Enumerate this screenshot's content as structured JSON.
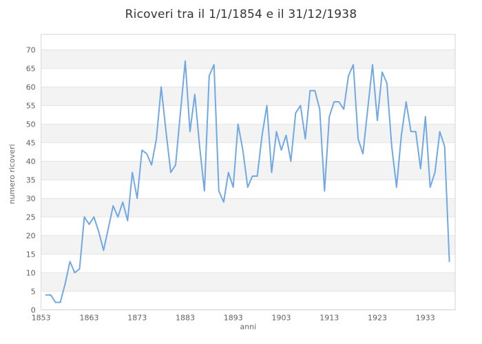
{
  "title": "Ricoveri tra il 1/1/1854 e il 31/12/1938",
  "chart_data": {
    "type": "line",
    "title": "Ricoveri tra il 1/1/1854 e il 31/12/1938",
    "xlabel": "anni",
    "ylabel": "numero ricoveri",
    "legend": "none",
    "grid": "horizontal gridlines every 5 units with alternating shaded bands",
    "start_year": 1854,
    "end_year": 1938,
    "x_ticks": [
      1853,
      1863,
      1873,
      1883,
      1893,
      1903,
      1913,
      1923,
      1933
    ],
    "y_ticks": [
      0,
      5,
      10,
      15,
      20,
      25,
      30,
      35,
      40,
      45,
      50,
      55,
      60,
      65,
      70
    ],
    "xlim": [
      1853,
      1939.2
    ],
    "ylim": [
      0,
      74.15
    ],
    "bands": [
      [
        5,
        10
      ],
      [
        15,
        20
      ],
      [
        25,
        30
      ],
      [
        35,
        40
      ],
      [
        45,
        50
      ],
      [
        55,
        60
      ],
      [
        65,
        70
      ]
    ],
    "values": [
      4,
      4,
      2,
      2,
      7,
      13,
      10,
      11,
      25,
      23,
      25,
      21,
      16,
      22,
      28,
      25,
      29,
      24,
      37,
      30,
      43,
      42,
      39,
      46,
      60,
      48,
      37,
      39,
      53,
      67,
      48,
      58,
      44,
      32,
      63,
      66,
      32,
      29,
      37,
      33,
      50,
      43,
      33,
      36,
      36,
      47,
      55,
      37,
      48,
      43,
      47,
      40,
      53,
      55,
      46,
      59,
      59,
      54,
      32,
      52,
      56,
      56,
      54,
      63,
      66,
      46,
      42,
      54,
      66,
      51,
      64,
      61,
      44,
      33,
      47,
      56,
      48,
      48,
      38,
      52,
      33,
      37,
      48,
      44,
      13
    ],
    "colors": {
      "line": "#6FA8E4",
      "band": "#f3f3f3",
      "grid": "#e4e4e4",
      "border": "#d6d6d6",
      "title_text": "#333333",
      "tick_text": "#606060",
      "axis_title_text": "#666666",
      "background": "#ffffff"
    }
  }
}
